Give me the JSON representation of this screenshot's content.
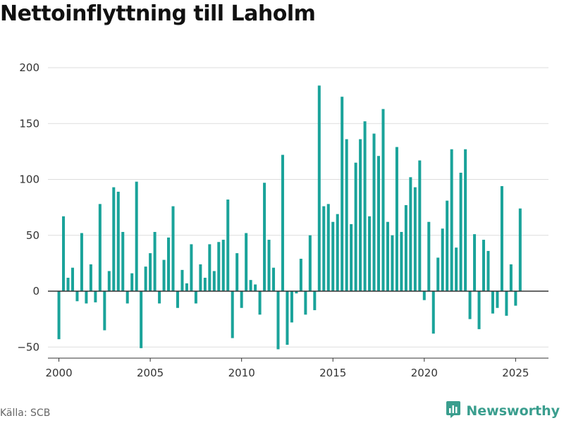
{
  "title": "Nettoinflyttning till Laholm",
  "source": "Källa: SCB",
  "brand": {
    "name": "Newsworthy",
    "icon": "bar-chart-logo-icon"
  },
  "colors": {
    "bar": "#1aa39a",
    "grid": "#dddddd",
    "zero": "#333333",
    "brand": "#3a9e8e"
  },
  "chart_data": {
    "type": "bar",
    "title": "Nettoinflyttning till Laholm",
    "xlabel": "",
    "ylabel": "",
    "ylim": [
      -60,
      200
    ],
    "xlim": [
      1999.4,
      2026.8
    ],
    "yticks": [
      200,
      150,
      100,
      50,
      0,
      -50
    ],
    "ytick_labels": [
      "200",
      "150",
      "100",
      "50",
      "0",
      "−50"
    ],
    "xticks": [
      2000,
      2005,
      2010,
      2015,
      2020,
      2025
    ],
    "xtick_labels": [
      "2000",
      "2005",
      "2010",
      "2015",
      "2020",
      "2025"
    ],
    "grid": true,
    "frequency": "quarterly",
    "series": [
      {
        "values": [
          -43,
          67,
          12,
          21,
          -9,
          52,
          -11,
          24,
          -10,
          78,
          -35,
          18,
          93,
          89,
          53,
          -11,
          16,
          98,
          -51,
          22,
          34,
          53,
          -11,
          28,
          48,
          76,
          -15,
          19,
          7,
          42,
          -11,
          24,
          12,
          42,
          18,
          44,
          46,
          82,
          -42,
          34,
          -15,
          52,
          10,
          6,
          -21,
          97,
          46,
          21,
          -52,
          122,
          -48,
          -28,
          -2,
          29,
          -21,
          50,
          -17,
          184,
          76,
          78,
          62,
          69,
          174,
          136,
          60,
          115,
          136,
          152,
          67,
          141,
          121,
          163,
          62,
          50,
          129,
          53,
          77,
          102,
          93,
          117,
          -8,
          62,
          -38,
          30,
          56,
          81,
          127,
          39,
          106,
          127,
          -25,
          51,
          -34,
          46,
          36,
          -20,
          -15,
          94,
          -22,
          24,
          -13,
          74
        ]
      }
    ]
  }
}
